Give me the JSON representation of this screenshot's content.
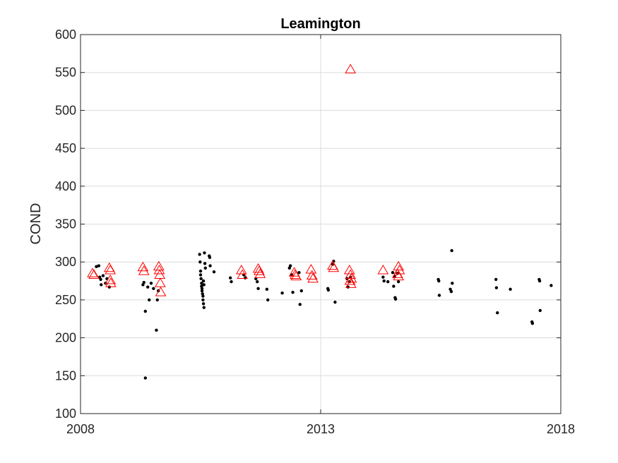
{
  "chart_data": {
    "type": "scatter",
    "title": "Leamington",
    "xlabel": "",
    "ylabel": "COND",
    "xlim": [
      2008,
      2018
    ],
    "ylim": [
      100,
      600
    ],
    "x_ticks": [
      "2008",
      "2013",
      "2018"
    ],
    "y_ticks": [
      "100",
      "150",
      "200",
      "250",
      "300",
      "350",
      "400",
      "450",
      "500",
      "550",
      "600"
    ],
    "grid": "horizontal gridlines; one vertical gridline at 2013",
    "colors": {
      "dots": "#000000",
      "triangles": "#ff0000",
      "grid": "#dcdcdc",
      "axes": "#262626"
    },
    "series": [
      {
        "marker": "dot",
        "color": "#000000",
        "points": [
          [
            2008.33,
            294
          ],
          [
            2008.38,
            295
          ],
          [
            2008.4,
            280
          ],
          [
            2008.42,
            277
          ],
          [
            2008.43,
            270
          ],
          [
            2008.47,
            282
          ],
          [
            2008.52,
            272
          ],
          [
            2008.55,
            278
          ],
          [
            2008.6,
            267
          ],
          [
            2009.3,
            270
          ],
          [
            2009.32,
            273
          ],
          [
            2009.35,
            235
          ],
          [
            2009.35,
            147
          ],
          [
            2009.4,
            267
          ],
          [
            2009.43,
            250
          ],
          [
            2009.47,
            272
          ],
          [
            2009.52,
            265
          ],
          [
            2009.58,
            210
          ],
          [
            2009.6,
            250
          ],
          [
            2009.62,
            262
          ],
          [
            2010.48,
            310
          ],
          [
            2010.49,
            300
          ],
          [
            2010.5,
            288
          ],
          [
            2010.51,
            278
          ],
          [
            2010.52,
            272
          ],
          [
            2010.53,
            265
          ],
          [
            2010.54,
            258
          ],
          [
            2010.55,
            250
          ],
          [
            2010.56,
            245
          ],
          [
            2010.57,
            240
          ],
          [
            2010.5,
            283
          ],
          [
            2010.52,
            268
          ],
          [
            2010.53,
            262
          ],
          [
            2010.55,
            255
          ],
          [
            2010.56,
            275
          ],
          [
            2010.57,
            270
          ],
          [
            2010.58,
            312
          ],
          [
            2010.59,
            298
          ],
          [
            2010.6,
            292
          ],
          [
            2010.68,
            308
          ],
          [
            2010.69,
            306
          ],
          [
            2010.7,
            295
          ],
          [
            2010.78,
            287
          ],
          [
            2011.12,
            279
          ],
          [
            2011.14,
            274
          ],
          [
            2011.4,
            283
          ],
          [
            2011.43,
            279
          ],
          [
            2011.65,
            278
          ],
          [
            2011.68,
            274
          ],
          [
            2011.7,
            265
          ],
          [
            2011.88,
            264
          ],
          [
            2011.9,
            250
          ],
          [
            2012.2,
            259
          ],
          [
            2012.35,
            292
          ],
          [
            2012.37,
            295
          ],
          [
            2012.4,
            283
          ],
          [
            2012.42,
            260
          ],
          [
            2012.55,
            286
          ],
          [
            2012.57,
            244
          ],
          [
            2012.6,
            262
          ],
          [
            2013.15,
            265
          ],
          [
            2013.16,
            263
          ],
          [
            2013.25,
            297
          ],
          [
            2013.27,
            301
          ],
          [
            2013.3,
            247
          ],
          [
            2013.55,
            278
          ],
          [
            2013.57,
            267
          ],
          [
            2013.6,
            274
          ],
          [
            2013.62,
            280
          ],
          [
            2014.3,
            280
          ],
          [
            2014.32,
            275
          ],
          [
            2014.4,
            274
          ],
          [
            2014.5,
            286
          ],
          [
            2014.52,
            268
          ],
          [
            2014.54,
            281
          ],
          [
            2014.55,
            253
          ],
          [
            2014.56,
            251
          ],
          [
            2014.6,
            285
          ],
          [
            2014.62,
            274
          ],
          [
            2015.45,
            277
          ],
          [
            2015.46,
            275
          ],
          [
            2015.47,
            256
          ],
          [
            2015.7,
            264
          ],
          [
            2015.72,
            261
          ],
          [
            2015.73,
            315
          ],
          [
            2015.74,
            272
          ],
          [
            2016.65,
            277
          ],
          [
            2016.66,
            266
          ],
          [
            2016.68,
            233
          ],
          [
            2016.95,
            264
          ],
          [
            2017.4,
            221
          ],
          [
            2017.41,
            219
          ],
          [
            2017.55,
            277
          ],
          [
            2017.56,
            275
          ],
          [
            2017.57,
            236
          ],
          [
            2017.8,
            269
          ]
        ]
      },
      {
        "marker": "triangle",
        "color": "#ff0000",
        "points": [
          [
            2008.25,
            285
          ],
          [
            2008.28,
            283
          ],
          [
            2008.6,
            292
          ],
          [
            2008.62,
            289
          ],
          [
            2008.62,
            276
          ],
          [
            2008.63,
            272
          ],
          [
            2009.3,
            293
          ],
          [
            2009.32,
            288
          ],
          [
            2009.63,
            294
          ],
          [
            2009.64,
            289
          ],
          [
            2009.65,
            283
          ],
          [
            2009.66,
            272
          ],
          [
            2009.67,
            260
          ],
          [
            2011.35,
            289
          ],
          [
            2011.37,
            283
          ],
          [
            2011.7,
            291
          ],
          [
            2011.72,
            288
          ],
          [
            2011.74,
            284
          ],
          [
            2012.45,
            286
          ],
          [
            2012.47,
            283
          ],
          [
            2012.49,
            281
          ],
          [
            2012.8,
            290
          ],
          [
            2012.82,
            282
          ],
          [
            2012.84,
            278
          ],
          [
            2013.25,
            295
          ],
          [
            2013.27,
            292
          ],
          [
            2013.62,
            554
          ],
          [
            2013.6,
            289
          ],
          [
            2013.62,
            283
          ],
          [
            2013.64,
            278
          ],
          [
            2013.61,
            275
          ],
          [
            2013.63,
            271
          ],
          [
            2014.3,
            289
          ],
          [
            2014.62,
            294
          ],
          [
            2014.64,
            289
          ],
          [
            2014.6,
            284
          ],
          [
            2014.62,
            281
          ]
        ]
      }
    ]
  }
}
